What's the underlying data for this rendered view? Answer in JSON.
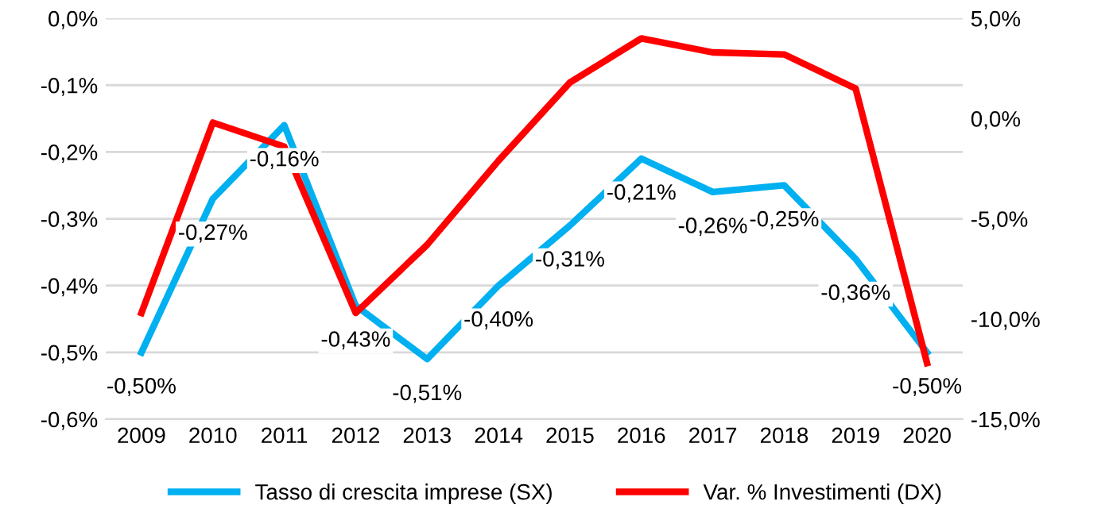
{
  "chart_data": {
    "type": "line",
    "categories": [
      "2009",
      "2010",
      "2011",
      "2012",
      "2013",
      "2014",
      "2015",
      "2016",
      "2017",
      "2018",
      "2019",
      "2020"
    ],
    "series": [
      {
        "name": "Tasso di crescita imprese (SX)",
        "color": "#00b0f0",
        "values": [
          -0.5,
          -0.27,
          -0.16,
          -0.43,
          -0.51,
          -0.4,
          -0.31,
          -0.21,
          -0.26,
          -0.25,
          -0.36,
          -0.5
        ],
        "value_labels": [
          "-0,50%",
          "-0,27%",
          "-0,16%",
          "-0,43%",
          "-0,51%",
          "-0,40%",
          "-0,31%",
          "-0,21%",
          "-0,26%",
          "-0,25%",
          "-0,36%",
          "-0,50%"
        ]
      },
      {
        "name": "Var. % Investimenti (DX)",
        "color": "#ff0000",
        "axis": "y2",
        "values": [
          -9.7,
          -0.2,
          -1.4,
          -9.7,
          -6.3,
          -2.1,
          1.8,
          4.0,
          3.3,
          3.2,
          1.5,
          -12.2
        ]
      }
    ],
    "ylim": [
      -0.6,
      0.0
    ],
    "yticks": [
      {
        "value": -0.6,
        "label": "-0,6%"
      },
      {
        "value": -0.5,
        "label": "-0,5%"
      },
      {
        "value": -0.4,
        "label": "-0,4%"
      },
      {
        "value": -0.3,
        "label": "-0,3%"
      },
      {
        "value": -0.2,
        "label": "-0,2%"
      },
      {
        "value": -0.1,
        "label": "-0,1%"
      },
      {
        "value": 0.0,
        "label": "0,0%"
      }
    ],
    "y2lim": [
      -15,
      5
    ],
    "y2ticks": [
      {
        "value": -15,
        "label": "-15,0%"
      },
      {
        "value": -10,
        "label": "-10,0%"
      },
      {
        "value": -5,
        "label": "-5,0%"
      },
      {
        "value": 0,
        "label": "0,0%"
      },
      {
        "value": 5,
        "label": "5,0%"
      }
    ],
    "grid": "y",
    "legend": "bottom",
    "marker": "none",
    "line_style": "solid"
  }
}
